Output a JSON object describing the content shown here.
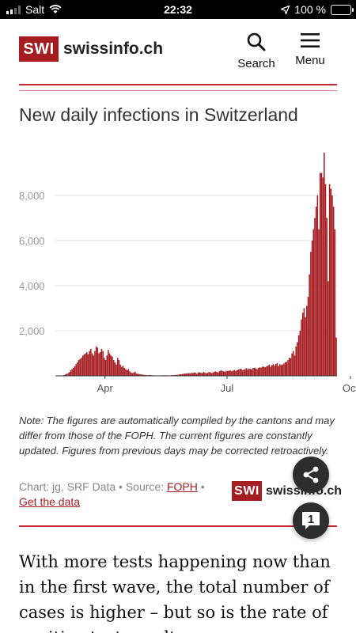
{
  "status_bar": {
    "carrier": "Salt",
    "time": "22:32",
    "battery": "100 %"
  },
  "header": {
    "logo_box": "SWI",
    "logo_text": "swissinfo.ch",
    "search_label": "Search",
    "menu_label": "Menu"
  },
  "chart_title": "New daily infections in Switzerland",
  "chart_data": {
    "type": "bar",
    "title": "New daily infections in Switzerland",
    "xlabel": "",
    "ylabel": "",
    "x_ticks": [
      "Apr",
      "Jul",
      "Oct"
    ],
    "y_ticks": [
      "2,000",
      "4,000",
      "6,000",
      "8,000"
    ],
    "ylim": [
      0,
      10000
    ],
    "grid": true,
    "color": "#a51c21",
    "x_start": "2020-02-24",
    "values": [
      1,
      1,
      2,
      5,
      10,
      20,
      35,
      60,
      90,
      120,
      160,
      250,
      300,
      350,
      420,
      520,
      600,
      700,
      750,
      800,
      900,
      950,
      1000,
      1050,
      950,
      1100,
      1200,
      1000,
      900,
      1100,
      1300,
      1250,
      1000,
      1050,
      1200,
      1100,
      800,
      700,
      900,
      1150,
      1000,
      900,
      850,
      700,
      600,
      500,
      800,
      700,
      500,
      400,
      450,
      350,
      300,
      250,
      300,
      200,
      150,
      120,
      150,
      180,
      100,
      90,
      80,
      70,
      60,
      50,
      40,
      35,
      30,
      30,
      40,
      30,
      25,
      20,
      20,
      15,
      20,
      15,
      20,
      25,
      20,
      30,
      20,
      25,
      20,
      20,
      30,
      25,
      35,
      40,
      45,
      50,
      60,
      70,
      80,
      90,
      100,
      100,
      110,
      120,
      100,
      130,
      120,
      150,
      140,
      90,
      150,
      160,
      140,
      120,
      170,
      150,
      110,
      130,
      170,
      160,
      120,
      140,
      180,
      200,
      170,
      150,
      210,
      250,
      220,
      200,
      180,
      220,
      210,
      230,
      240,
      200,
      230,
      260,
      220,
      250,
      280,
      300,
      320,
      250,
      270,
      300,
      340,
      280,
      330,
      310,
      290,
      350,
      360,
      330,
      300,
      350,
      380,
      370,
      410,
      400,
      380,
      420,
      450,
      500,
      400,
      480,
      520,
      450,
      530,
      560,
      430,
      520,
      480,
      500,
      550,
      600,
      620,
      700,
      800,
      780,
      1000,
      1100,
      900,
      1300,
      1500,
      1800,
      2000,
      2500,
      2800,
      3000,
      2600,
      3100,
      3500,
      4500,
      5500,
      6000,
      6500,
      7000,
      7500,
      8000,
      6500,
      9000,
      9000,
      8800,
      9900,
      8500,
      7000,
      4200,
      8500,
      8300,
      8000,
      7500,
      6500,
      1700
    ]
  },
  "note": "Note: The figures are automatically compiled by the cantons and may differ from those of the FOPH. The current figures are constantly updated. Figures from previous days may be corrected retroactively.",
  "source": {
    "prefix": "Chart: jg, SRF Data • Source: ",
    "link": "FOPH",
    "suffix": " •",
    "get_data": "Get the data"
  },
  "comment_count": "1",
  "article_text": "With more tests happening now than in the first wave, the total number of cases is higher – but so is the rate of positive test results."
}
